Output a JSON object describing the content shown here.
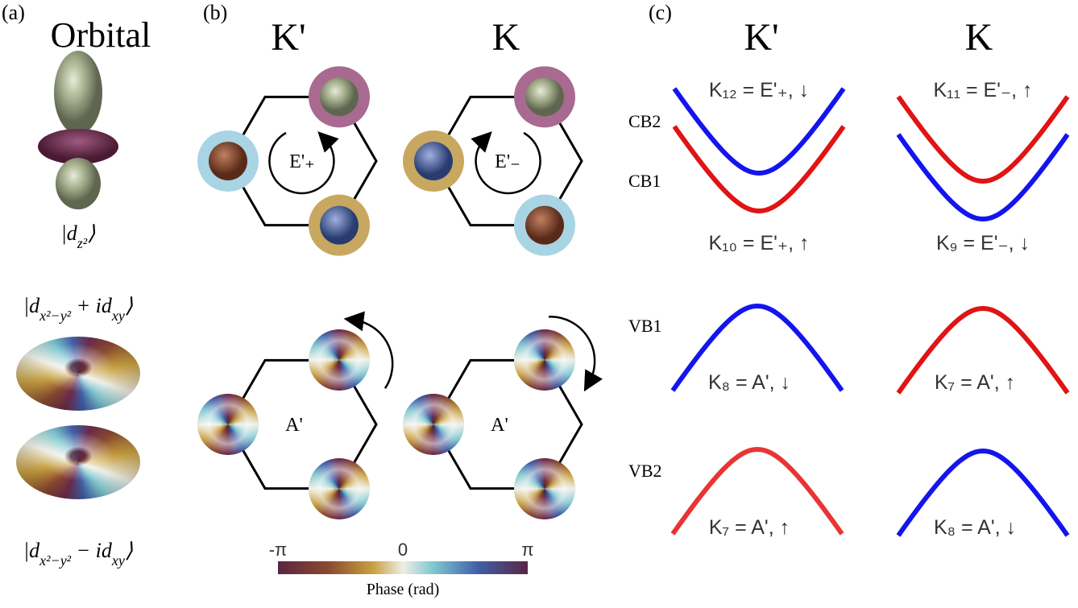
{
  "panel_a": {
    "label": "(a)",
    "title": "Orbital",
    "kets": [
      {
        "parts": [
          {
            "t": "|d"
          },
          {
            "t": "z²",
            "sub": true
          },
          {
            "t": "⟩"
          }
        ]
      },
      {
        "parts": [
          {
            "t": "|d"
          },
          {
            "t": "x²−y²",
            "sub": true
          },
          {
            "t": " + id"
          },
          {
            "t": "xy",
            "sub": true
          },
          {
            "t": "⟩"
          }
        ]
      },
      {
        "parts": [
          {
            "t": "|d"
          },
          {
            "t": "x²−y²",
            "sub": true
          },
          {
            "t": " − id"
          },
          {
            "t": "xy",
            "sub": true
          },
          {
            "t": "⟩"
          }
        ]
      }
    ]
  },
  "panel_b": {
    "label": "(b)",
    "valleys": [
      "K'",
      "K"
    ],
    "upper_labels": [
      "E'₊",
      "E'₋"
    ],
    "lower_labels": [
      "A'",
      "A'"
    ],
    "colorbar": {
      "ticks": [
        "-π",
        "0",
        "π"
      ],
      "label": "Phase (rad)"
    }
  },
  "panel_c": {
    "label": "(c)",
    "valleys": [
      "K'",
      "K"
    ],
    "band_names": [
      "CB2",
      "CB1",
      "VB1",
      "VB2"
    ],
    "bands": [
      {
        "label": "K₁₂ = E'₊, ↓",
        "color": "#1414ee"
      },
      {
        "label": "K₁₀ = E'₊, ↑",
        "color": "#e01414"
      },
      {
        "label": "K₁₁ = E'₋, ↑",
        "color": "#e01414"
      },
      {
        "label": "K₉ = E'₋, ↓",
        "color": "#1414ee"
      },
      {
        "label": "K₈ = A', ↓",
        "color": "#1414ee"
      },
      {
        "label": "K₇ = A', ↑",
        "color": "#e83434"
      },
      {
        "label": "K₇ = A', ↑",
        "color": "#e01414"
      },
      {
        "label": "K₈ = A', ↓",
        "color": "#1414ee"
      }
    ]
  }
}
